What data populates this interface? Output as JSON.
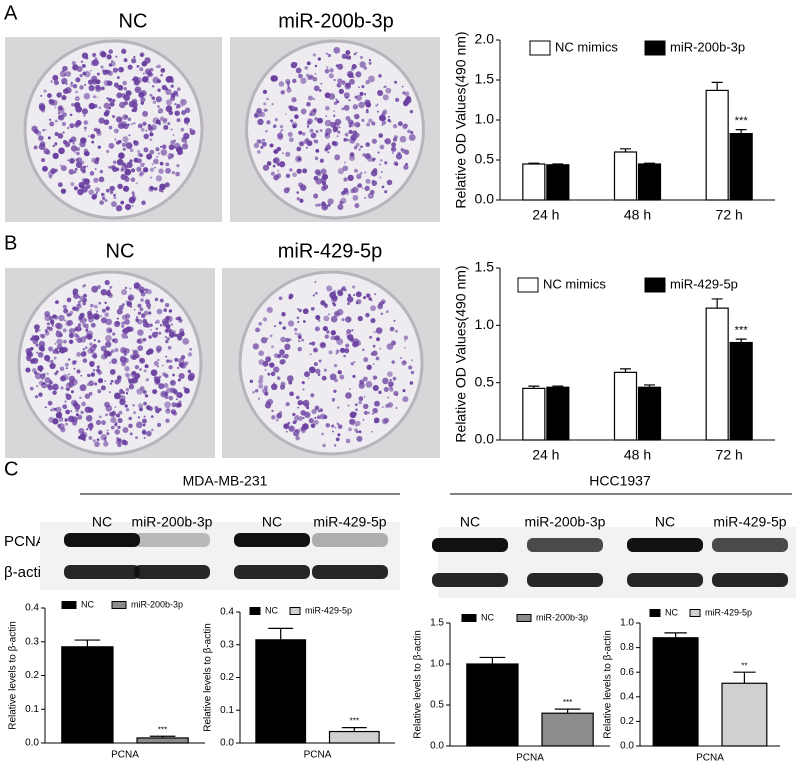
{
  "panels": {
    "panel_labels": [
      "A",
      "B",
      "C"
    ],
    "plates": [
      {
        "labels": [
          "NC",
          "miR-200b-3p"
        ]
      },
      {
        "labels": [
          "NC",
          "miR-429-5p"
        ]
      }
    ],
    "blots": {
      "cell_lines": [
        "MDA-MB-231",
        "HCC1937"
      ],
      "lane_labels": [
        [
          "NC",
          "miR-200b-3p",
          "NC",
          "miR-429-5p"
        ],
        [
          "NC",
          "miR-200b-3p",
          "NC",
          "miR-429-5p"
        ]
      ],
      "rows": [
        "PCNA",
        "β-actin"
      ]
    }
  },
  "chart_data": [
    {
      "type": "bar",
      "ylabel": "Relative OD Values(490 nm)",
      "categories": [
        "24 h",
        "48 h",
        "72 h"
      ],
      "series": [
        {
          "name": "NC mimics",
          "color": "#ffffff",
          "values": [
            0.45,
            0.6,
            1.37
          ],
          "errors": [
            0.01,
            0.04,
            0.1
          ]
        },
        {
          "name": "miR-200b-3p",
          "color": "#000000",
          "values": [
            0.44,
            0.45,
            0.83
          ],
          "errors": [
            0.01,
            0.01,
            0.05
          ]
        }
      ],
      "ylim": [
        0,
        2
      ],
      "yticks": [
        {
          "value": 0,
          "label": "0.0"
        },
        0.5,
        {
          "value": 1,
          "label": "1.0"
        },
        1.5,
        {
          "value": 2,
          "label": "2.0"
        }
      ],
      "annotation": "***"
    },
    {
      "type": "bar",
      "ylabel": "Relative OD Values(490 nm)",
      "categories": [
        "24 h",
        "48 h",
        "72 h"
      ],
      "series": [
        {
          "name": "NC mimics",
          "color": "#ffffff",
          "values": [
            0.45,
            0.59,
            1.15
          ],
          "errors": [
            0.02,
            0.03,
            0.08
          ]
        },
        {
          "name": "miR-429-5p",
          "color": "#000000",
          "values": [
            0.46,
            0.46,
            0.85
          ],
          "errors": [
            0.01,
            0.02,
            0.03
          ]
        }
      ],
      "ylim": [
        0,
        1.5
      ],
      "yticks": [
        {
          "value": 0,
          "label": "0.0"
        },
        0.5,
        {
          "value": 1,
          "label": "1.0"
        },
        1.5
      ],
      "annotation": "***"
    },
    {
      "type": "bar",
      "ylabel": "Relative levels to β-actin",
      "categories": [
        "PCNA"
      ],
      "series": [
        {
          "name": "NC",
          "color": "#000000",
          "values": [
            0.285
          ],
          "errors": [
            0.02
          ]
        },
        {
          "name": "miR-200b-3p",
          "color": "#8c8c8c",
          "values": [
            0.015
          ],
          "errors": [
            0.005
          ]
        }
      ],
      "ylim": [
        0,
        0.4
      ],
      "yticks": [
        {
          "value": 0,
          "label": "0.0"
        },
        0.1,
        0.2,
        0.3,
        0.4
      ],
      "annotation": "***"
    },
    {
      "type": "bar",
      "ylabel": "Relative levels to β-actin",
      "categories": [
        "PCNA"
      ],
      "series": [
        {
          "name": "NC",
          "color": "#000000",
          "values": [
            0.315
          ],
          "errors": [
            0.035
          ]
        },
        {
          "name": "miR-429-5p",
          "color": "#d0d0d0",
          "values": [
            0.035
          ],
          "errors": [
            0.012
          ]
        }
      ],
      "ylim": [
        0,
        0.4
      ],
      "yticks": [
        {
          "value": 0,
          "label": "0.0"
        },
        0.1,
        0.2,
        0.3,
        0.4
      ],
      "annotation": "***"
    },
    {
      "type": "bar",
      "ylabel": "Relative levels to β-actin",
      "categories": [
        "PCNA"
      ],
      "series": [
        {
          "name": "NC",
          "color": "#000000",
          "values": [
            1.0
          ],
          "errors": [
            0.08
          ]
        },
        {
          "name": "miR-200b-3p",
          "color": "#8c8c8c",
          "values": [
            0.4
          ],
          "errors": [
            0.05
          ]
        }
      ],
      "ylim": [
        0,
        1.5
      ],
      "yticks": [
        {
          "value": 0,
          "label": "0.0"
        },
        0.5,
        {
          "value": 1,
          "label": "1.0"
        },
        1.5
      ],
      "annotation": "***"
    },
    {
      "type": "bar",
      "ylabel": "Relative levels to β-actin",
      "categories": [
        "PCNA"
      ],
      "series": [
        {
          "name": "NC",
          "color": "#000000",
          "values": [
            0.88
          ],
          "errors": [
            0.04
          ]
        },
        {
          "name": "miR-429-5p",
          "color": "#d0d0d0",
          "values": [
            0.51
          ],
          "errors": [
            0.09
          ]
        }
      ],
      "ylim": [
        0,
        1
      ],
      "yticks": [
        {
          "value": 0,
          "label": "0.0"
        },
        0.2,
        0.4,
        0.6,
        0.8,
        {
          "value": 1,
          "label": "1.0"
        }
      ],
      "annotation": "**"
    }
  ]
}
